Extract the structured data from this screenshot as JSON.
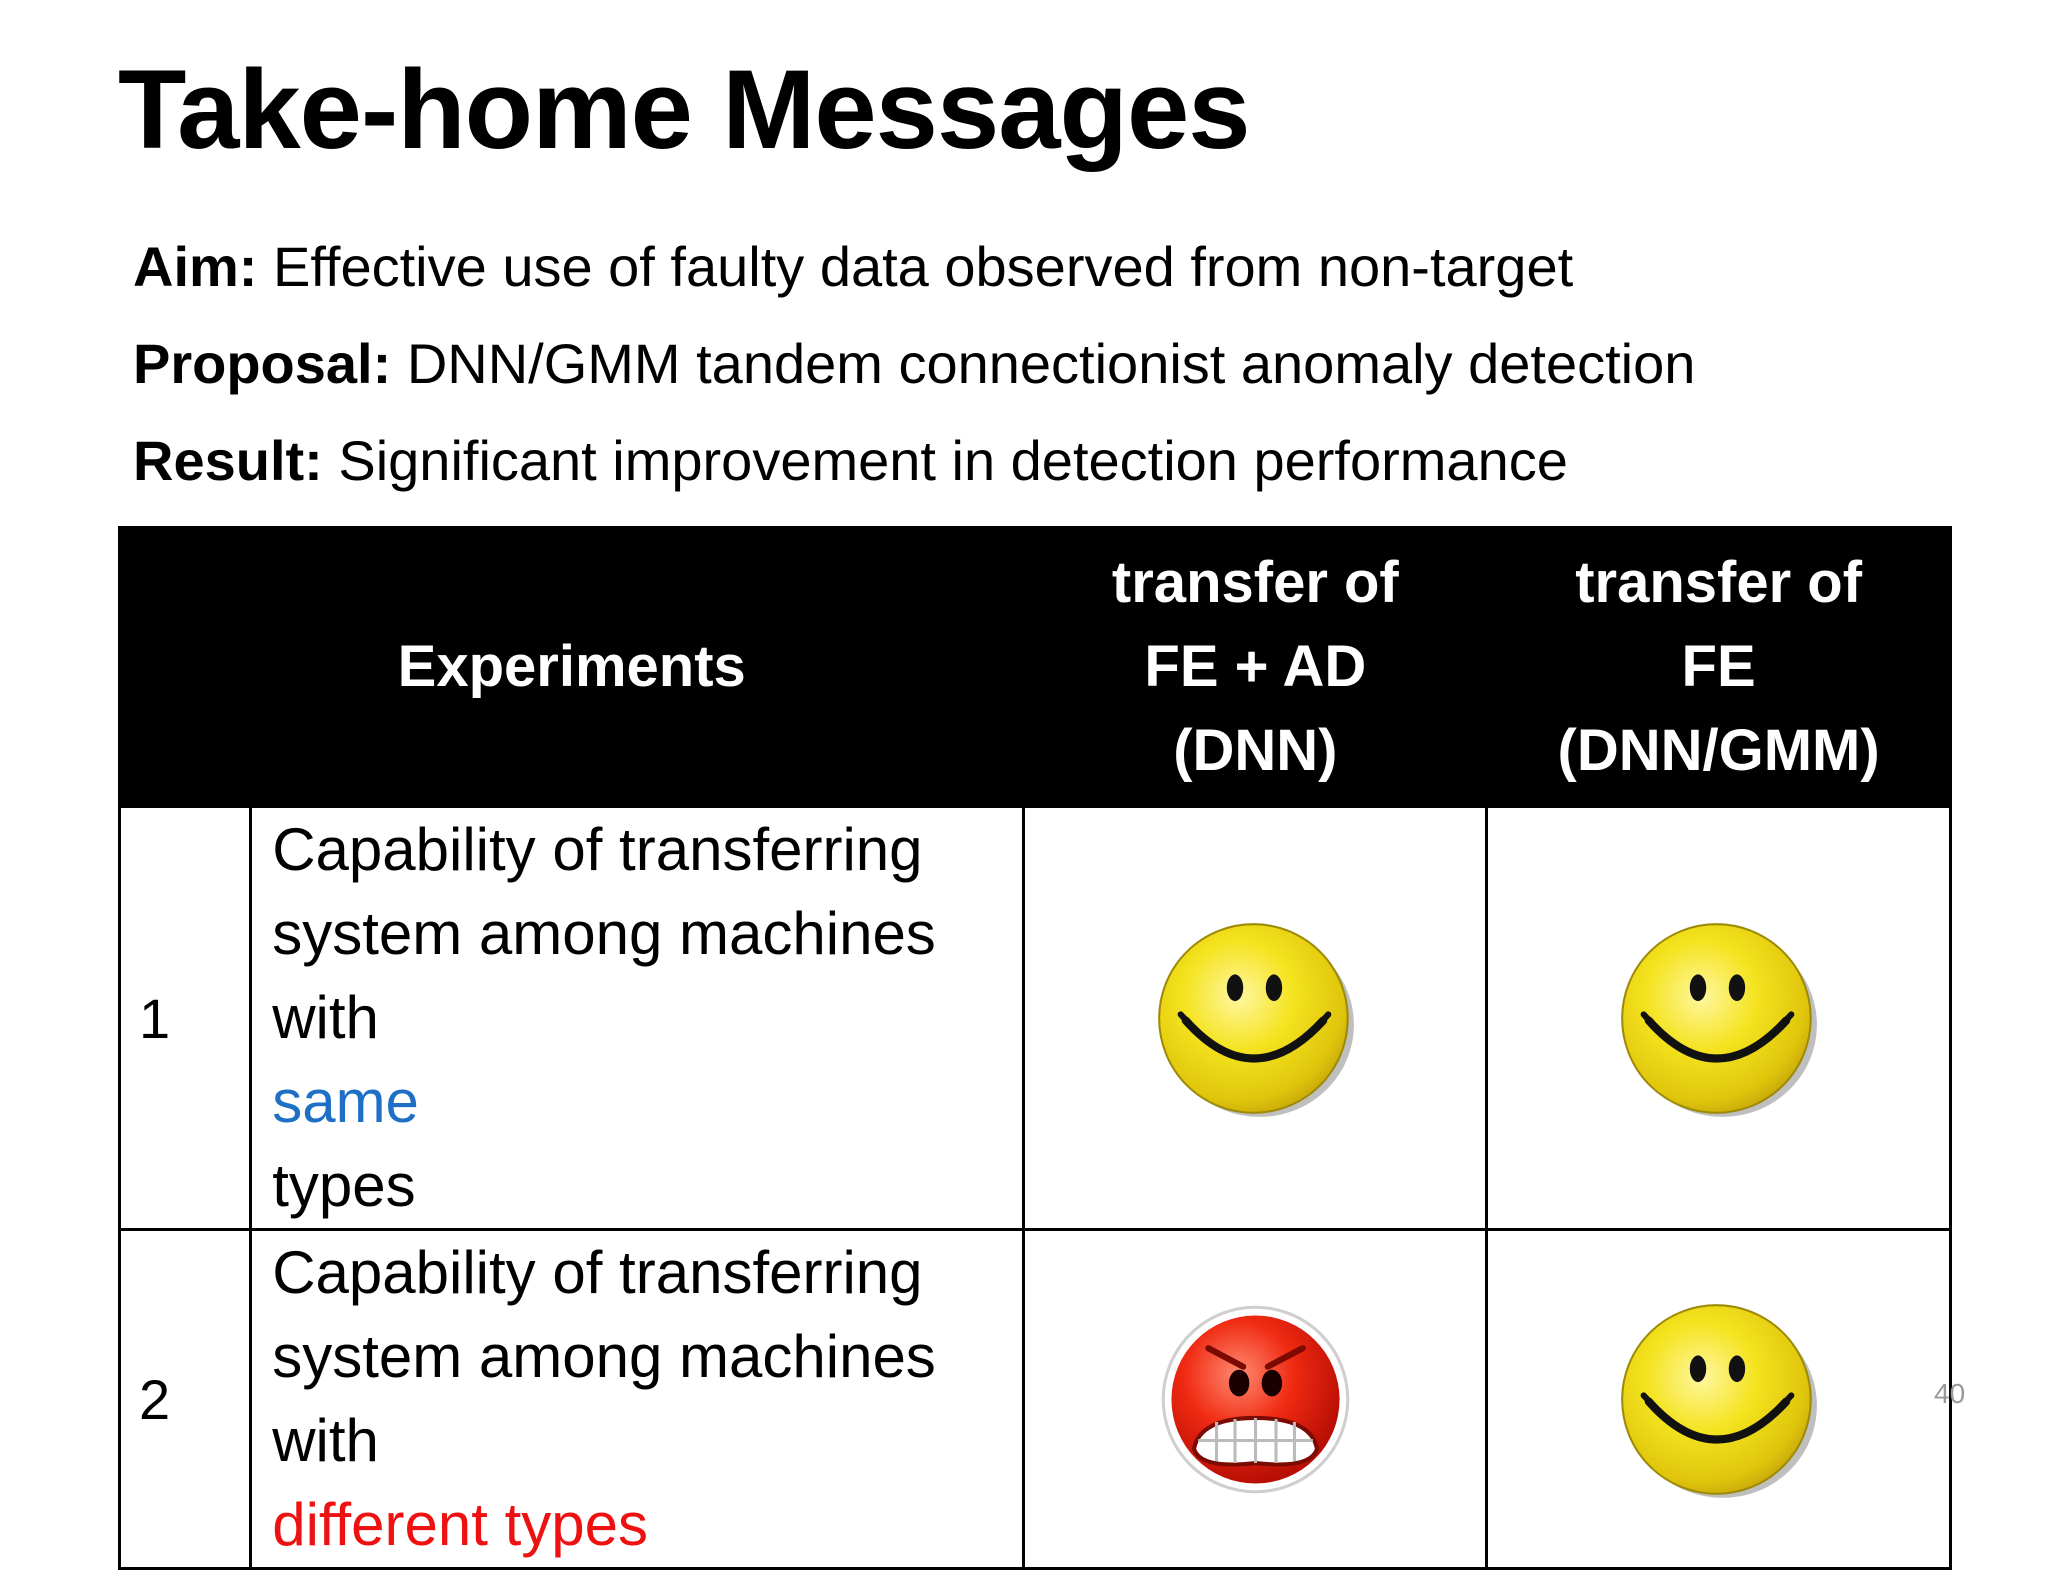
{
  "slide": {
    "title": "Take-home Messages",
    "bullets": [
      {
        "label": "Aim:",
        "text": " Effective use of faulty data observed from non-target"
      },
      {
        "label": "Proposal:",
        "text": " DNN/GMM tandem connectionist anomaly detection"
      },
      {
        "label": "Result:",
        "text": " Significant improvement in detection performance"
      }
    ],
    "page_number": "40"
  },
  "table": {
    "headers": {
      "experiments": "Experiments",
      "col_a": [
        "transfer of",
        "FE + AD",
        "(DNN)"
      ],
      "col_b": [
        "transfer of",
        "FE",
        "(DNN/GMM)"
      ]
    },
    "rows": [
      {
        "num": "1",
        "line1": "Capability of transferring",
        "line2": "system among machines",
        "line3_prefix": "with ",
        "line3_highlight": "same",
        "line3_suffix": " types",
        "highlight_color": "#1f6fc5",
        "col_a_icon": "happy-face-icon",
        "col_b_icon": "happy-face-icon"
      },
      {
        "num": "2",
        "line1": "Capability of transferring",
        "line2": "system among machines",
        "line3_prefix": "with ",
        "line3_highlight": "different types",
        "line3_suffix": "",
        "highlight_color": "#ee1111",
        "col_a_icon": "angry-face-icon",
        "col_b_icon": "happy-face-icon"
      }
    ]
  }
}
